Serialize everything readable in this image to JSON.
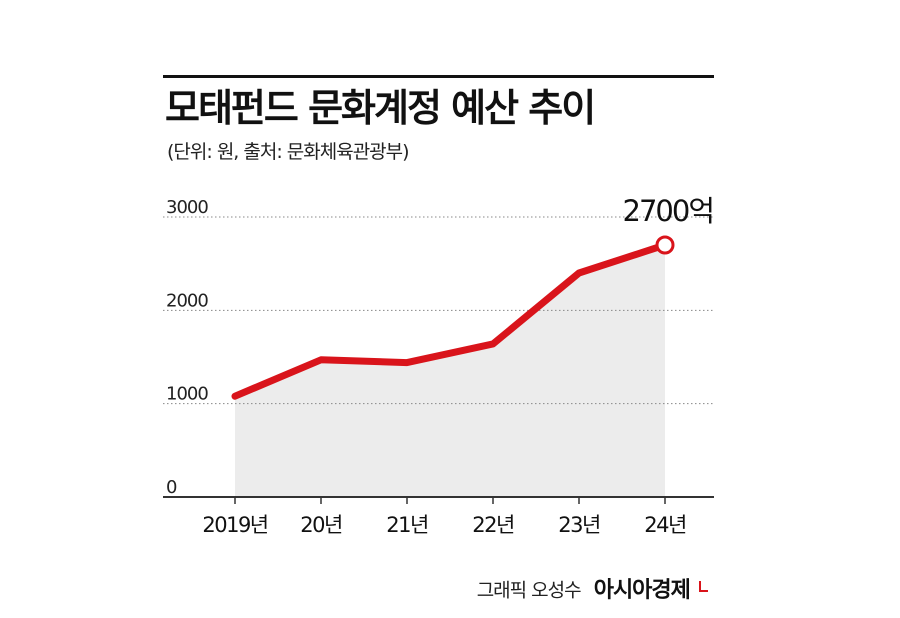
{
  "header": {
    "title": "모태펀드 문화계정 예산 추이",
    "subtitle": "(단위: 원, 출처: 문화체육관광부)"
  },
  "chart_data": {
    "type": "area",
    "title": "모태펀드 문화계정 예산 추이",
    "subtitle": "(단위: 원, 출처: 문화체육관광부)",
    "categories": [
      "2019년",
      "20년",
      "21년",
      "22년",
      "23년",
      "24년"
    ],
    "series": [
      {
        "values": [
          1080,
          1470,
          1440,
          1640,
          2400,
          2700
        ]
      }
    ],
    "y_ticks": [
      "0",
      "1000",
      "2000",
      "3000"
    ],
    "ylim": [
      0,
      3000
    ],
    "grid": true,
    "annotation": {
      "label": "2700억",
      "category": "24년",
      "value": 2700
    },
    "colors": {
      "line": "#d9141b",
      "area": "#ececec",
      "grid": "#888888"
    }
  },
  "credit": {
    "author": "그래픽 오성수",
    "brand": "아시아경제"
  }
}
